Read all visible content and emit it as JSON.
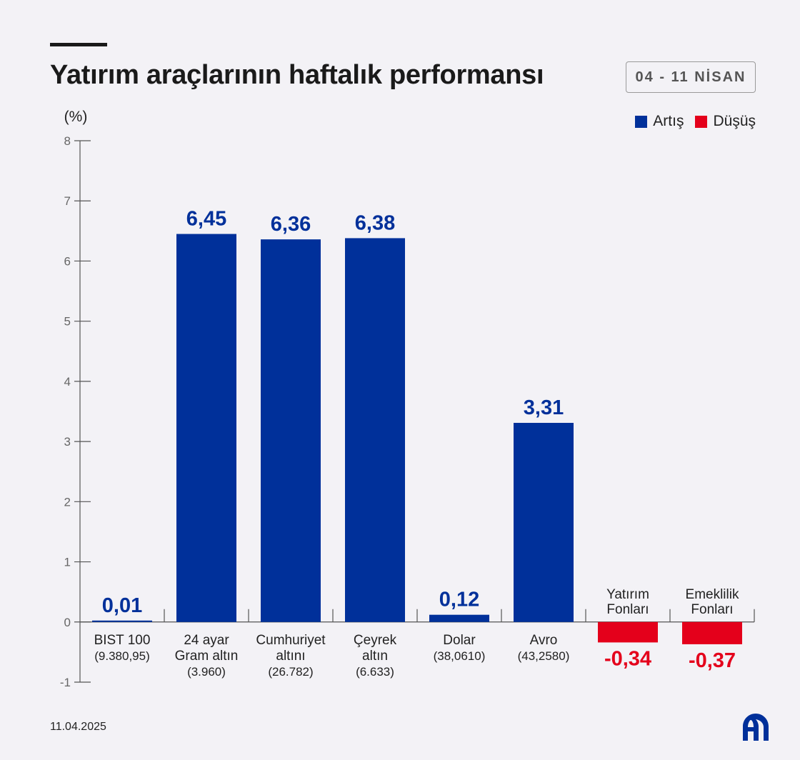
{
  "header": {
    "title": "Yatırım araçlarının haftalık performansı",
    "date_range": "04 - 11 NİSAN"
  },
  "legend": [
    {
      "label": "Artış",
      "color": "#00309a"
    },
    {
      "label": "Düşüş",
      "color": "#e4001b"
    }
  ],
  "footer": {
    "date": "11.04.2025",
    "logo": "aa-logo-icon"
  },
  "chart_data": {
    "type": "bar",
    "unit_label": "(%)",
    "ylim": [
      -1,
      8
    ],
    "yticks": [
      "-1",
      "0",
      "1",
      "2",
      "3",
      "4",
      "5",
      "6",
      "7",
      "8"
    ],
    "grid": false,
    "legend_position": "top-right",
    "colors": {
      "positive": "#00309a",
      "negative": "#e4001b"
    },
    "categories": [
      [
        "BIST 100",
        "(9.380,95)"
      ],
      [
        "24 ayar",
        "Gram altın",
        "(3.960)"
      ],
      [
        "Cumhuriyet",
        "altını",
        "(26.782)"
      ],
      [
        "Çeyrek",
        "altın",
        "(6.633)"
      ],
      [
        "Dolar",
        "(38,0610)"
      ],
      [
        "Avro",
        "(43,2580)"
      ],
      [
        "Yatırım",
        "Fonları"
      ],
      [
        "Emeklilik",
        "Fonları"
      ]
    ],
    "values": [
      0.01,
      6.45,
      6.36,
      6.38,
      0.12,
      3.31,
      -0.34,
      -0.37
    ],
    "value_labels": [
      "0,01",
      "6,45",
      "6,36",
      "6,38",
      "0,12",
      "3,31",
      "-0,34",
      "-0,37"
    ]
  }
}
